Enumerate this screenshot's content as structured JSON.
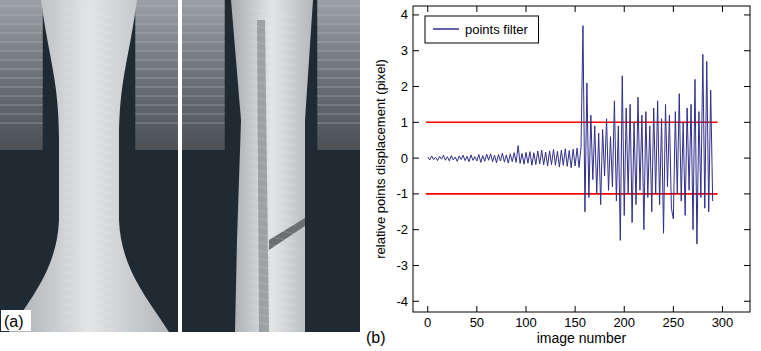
{
  "photo_panel": {
    "label": "(a)"
  },
  "chart_data": {
    "type": "line",
    "panel_label": "(b)",
    "x_label": "image number",
    "y_label": "relative points displacement (pixel)",
    "x": [
      0,
      2,
      4,
      6,
      8,
      10,
      12,
      14,
      16,
      18,
      20,
      22,
      24,
      26,
      28,
      30,
      32,
      34,
      36,
      38,
      40,
      42,
      44,
      46,
      48,
      50,
      52,
      54,
      56,
      58,
      60,
      62,
      64,
      66,
      68,
      70,
      72,
      74,
      76,
      78,
      80,
      82,
      84,
      86,
      88,
      90,
      92,
      94,
      96,
      98,
      100,
      102,
      104,
      106,
      108,
      110,
      112,
      114,
      116,
      118,
      120,
      122,
      124,
      126,
      128,
      130,
      132,
      134,
      136,
      138,
      140,
      142,
      144,
      146,
      148,
      150,
      152,
      154,
      156,
      158,
      160,
      162,
      164,
      166,
      168,
      170,
      172,
      174,
      176,
      178,
      180,
      182,
      184,
      186,
      188,
      190,
      192,
      194,
      196,
      198,
      200,
      202,
      204,
      206,
      208,
      210,
      212,
      214,
      216,
      218,
      220,
      222,
      224,
      226,
      228,
      230,
      232,
      234,
      236,
      238,
      240,
      242,
      244,
      246,
      248,
      250,
      252,
      254,
      256,
      258,
      260,
      262,
      264,
      266,
      268,
      270,
      272,
      274,
      276,
      278,
      280,
      282,
      284,
      286,
      288,
      290
    ],
    "series": [
      {
        "name": "points filter",
        "color": "#2f2f8c",
        "values": [
          0.03,
          -0.05,
          0.06,
          -0.04,
          0.02,
          -0.07,
          0.05,
          -0.03,
          0.08,
          -0.06,
          0.04,
          -0.08,
          0.07,
          -0.05,
          0.03,
          -0.09,
          0.06,
          -0.04,
          0.08,
          -0.07,
          0.05,
          -0.1,
          0.09,
          -0.06,
          0.04,
          -0.08,
          0.1,
          -0.12,
          0.07,
          -0.09,
          0.11,
          -0.06,
          0.12,
          -0.1,
          0.08,
          -0.13,
          0.1,
          -0.08,
          0.14,
          -0.11,
          0.09,
          -0.14,
          0.12,
          -0.1,
          0.15,
          -0.12,
          0.35,
          -0.15,
          0.13,
          -0.17,
          0.16,
          -0.14,
          0.18,
          -0.2,
          0.15,
          -0.18,
          0.2,
          -0.16,
          0.22,
          -0.19,
          0.17,
          -0.22,
          0.2,
          -0.18,
          0.24,
          -0.2,
          0.19,
          -0.25,
          0.22,
          -0.2,
          0.26,
          -0.23,
          0.21,
          -0.27,
          0.25,
          -0.22,
          0.28,
          -0.26,
          0.3,
          3.7,
          -1.5,
          2.1,
          -1.1,
          1.2,
          -0.6,
          0.9,
          -1.0,
          0.7,
          -1.3,
          0.8,
          -0.5,
          1.1,
          -0.9,
          0.6,
          -0.8,
          1.6,
          -1.2,
          0.9,
          -2.3,
          2.3,
          -1.6,
          1.4,
          -1.0,
          1.5,
          -1.8,
          1.0,
          -1.3,
          1.7,
          -0.9,
          1.2,
          -2.0,
          1.3,
          -1.1,
          0.9,
          -1.5,
          1.4,
          -1.0,
          1.6,
          -1.3,
          1.1,
          -2.1,
          1.5,
          -0.8,
          1.2,
          -1.4,
          -1.7,
          1.3,
          -1.0,
          1.8,
          -1.2,
          1.0,
          -1.6,
          1.4,
          -0.9,
          1.5,
          -2.0,
          2.2,
          -2.4,
          1.3,
          -1.1,
          2.9,
          -1.4,
          2.7,
          -1.5,
          1.9,
          -1.2
        ]
      }
    ],
    "reference_lines": [
      {
        "value": 1,
        "from": -2,
        "to": 295,
        "color": "#ff0000"
      },
      {
        "value": -1,
        "from": -2,
        "to": 295,
        "color": "#ff0000"
      }
    ],
    "xlim": [
      -15,
      328
    ],
    "ylim": [
      -4.3,
      4.25
    ],
    "xticks": [
      0,
      50,
      100,
      150,
      200,
      250,
      300
    ],
    "yticks": [
      -4,
      -3,
      -2,
      -1,
      0,
      1,
      2,
      3,
      4
    ],
    "grid": false,
    "legend": "top-left"
  }
}
